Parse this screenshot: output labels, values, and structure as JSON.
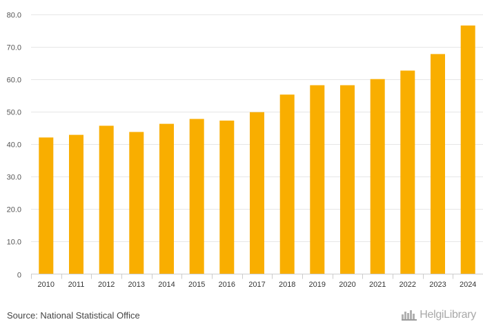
{
  "chart_data": {
    "type": "bar",
    "categories": [
      "2010",
      "2011",
      "2012",
      "2013",
      "2014",
      "2015",
      "2016",
      "2017",
      "2018",
      "2019",
      "2020",
      "2021",
      "2022",
      "2023",
      "2024"
    ],
    "values": [
      42.1,
      42.9,
      45.7,
      43.8,
      46.3,
      47.8,
      47.3,
      49.9,
      55.3,
      58.2,
      58.2,
      60.1,
      62.7,
      67.8,
      76.6
    ],
    "ylim": [
      0,
      80
    ],
    "yticks": [
      {
        "value": 0,
        "label": "0"
      },
      {
        "value": 10,
        "label": "10.0"
      },
      {
        "value": 20,
        "label": "20.0"
      },
      {
        "value": 30,
        "label": "30.0"
      },
      {
        "value": 40,
        "label": "40.0"
      },
      {
        "value": 50,
        "label": "50.0"
      },
      {
        "value": 60,
        "label": "60.0"
      },
      {
        "value": 70,
        "label": "70.0"
      },
      {
        "value": 80,
        "label": "80.0"
      }
    ],
    "title": "",
    "xlabel": "",
    "ylabel": "",
    "grid": true,
    "bar_color": "#f9ae00"
  },
  "footer": {
    "source": "Source: National Statistical Office",
    "logo": "HelgiLibrary"
  },
  "icons": {
    "logo": "city-skyline-icon"
  }
}
